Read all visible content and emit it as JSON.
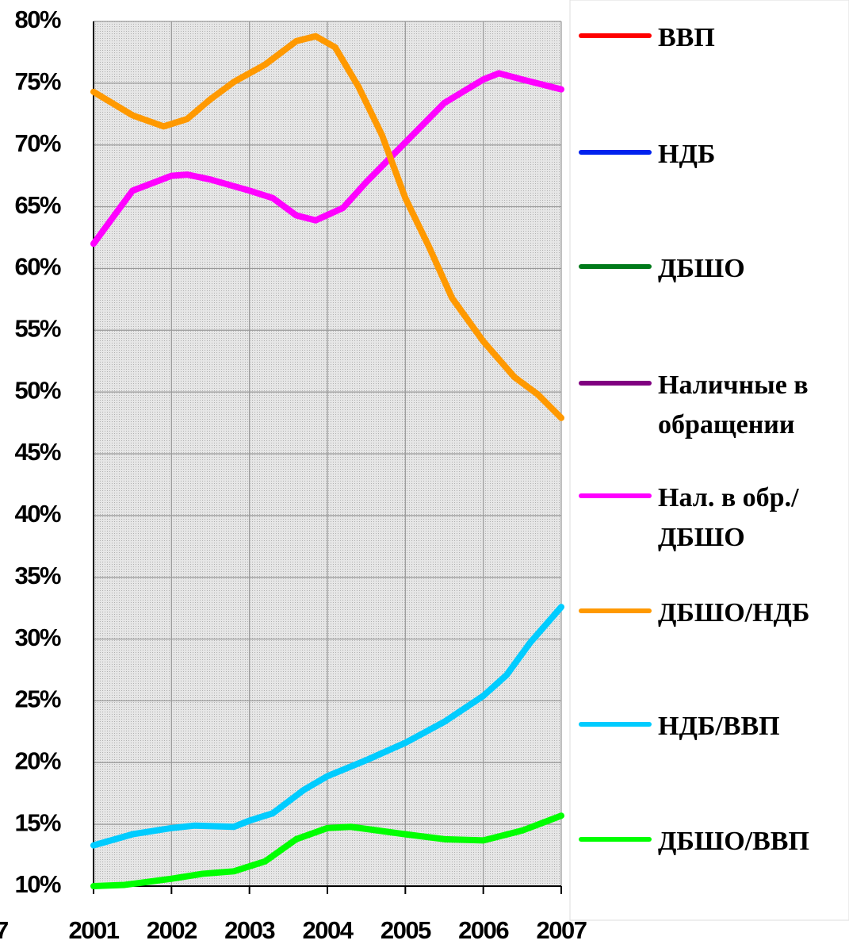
{
  "chart_data": {
    "type": "line",
    "x_label_fragment": "7",
    "xlim": [
      2001,
      2007
    ],
    "xticks": [
      2001,
      2002,
      2003,
      2004,
      2005,
      2006,
      2007
    ],
    "ylim": [
      10,
      80
    ],
    "yticks": [
      {
        "value": 10,
        "label": "10%"
      },
      {
        "value": 15,
        "label": "15%"
      },
      {
        "value": 20,
        "label": "20%"
      },
      {
        "value": 25,
        "label": "25%"
      },
      {
        "value": 30,
        "label": "30%"
      },
      {
        "value": 35,
        "label": "35%"
      },
      {
        "value": 40,
        "label": "40%"
      },
      {
        "value": 45,
        "label": "45%"
      },
      {
        "value": 50,
        "label": "50%"
      },
      {
        "value": 55,
        "label": "55%"
      },
      {
        "value": 60,
        "label": "60%"
      },
      {
        "value": 65,
        "label": "65%"
      },
      {
        "value": 70,
        "label": "70%"
      },
      {
        "value": 75,
        "label": "75%"
      },
      {
        "value": 80,
        "label": "80%"
      }
    ],
    "grid": true,
    "series": [
      {
        "name": "ВВП",
        "color": "#ff0000"
      },
      {
        "name": "НДБ",
        "color": "#0022ee"
      },
      {
        "name": "ДБШО",
        "color": "#007a1a"
      },
      {
        "name": "Наличные в обращении",
        "color": "#800080"
      },
      {
        "name": "Нал. в обр./ДБШО",
        "color": "#ff00ff",
        "x": [
          2001,
          2001.5,
          2002,
          2002.2,
          2002.5,
          2003,
          2003.3,
          2003.6,
          2003.85,
          2004.2,
          2004.5,
          2005,
          2005.5,
          2006,
          2006.2,
          2006.5,
          2007
        ],
        "values": [
          62,
          66.3,
          67.5,
          67.6,
          67.2,
          66.3,
          65.7,
          64.3,
          63.9,
          64.9,
          67,
          70.2,
          73.4,
          75.3,
          75.8,
          75.3,
          74.5
        ]
      },
      {
        "name": "ДБШО/НДБ",
        "color": "#ff9900",
        "x": [
          2001,
          2001.5,
          2001.9,
          2002.2,
          2002.5,
          2002.8,
          2003.2,
          2003.6,
          2003.85,
          2004.1,
          2004.4,
          2004.7,
          2005,
          2005.3,
          2005.6,
          2006,
          2006.4,
          2006.7,
          2007
        ],
        "values": [
          74.3,
          72.4,
          71.5,
          72.1,
          73.7,
          75.1,
          76.5,
          78.4,
          78.8,
          77.9,
          74.7,
          70.8,
          65.7,
          61.8,
          57.6,
          54.1,
          51.2,
          49.8,
          47.9
        ]
      },
      {
        "name": "НДБ/ВВП",
        "color": "#00ccff",
        "x": [
          2001,
          2001.5,
          2002,
          2002.3,
          2002.8,
          2003,
          2003.3,
          2003.7,
          2004,
          2004.5,
          2005,
          2005.5,
          2006,
          2006.3,
          2006.6,
          2007
        ],
        "values": [
          13.3,
          14.2,
          14.7,
          14.9,
          14.8,
          15.3,
          15.9,
          17.8,
          18.9,
          20.2,
          21.6,
          23.3,
          25.4,
          27.1,
          29.7,
          32.6
        ]
      },
      {
        "name": "ДБШО/ВВП",
        "color": "#00ff00",
        "x": [
          2001,
          2001.4,
          2002,
          2002.4,
          2002.8,
          2003.2,
          2003.6,
          2004,
          2004.3,
          2005,
          2005.5,
          2006,
          2006.5,
          2007
        ],
        "values": [
          10,
          10.1,
          10.6,
          11,
          11.2,
          12,
          13.8,
          14.7,
          14.8,
          14.2,
          13.8,
          13.7,
          14.5,
          15.7
        ]
      }
    ]
  }
}
